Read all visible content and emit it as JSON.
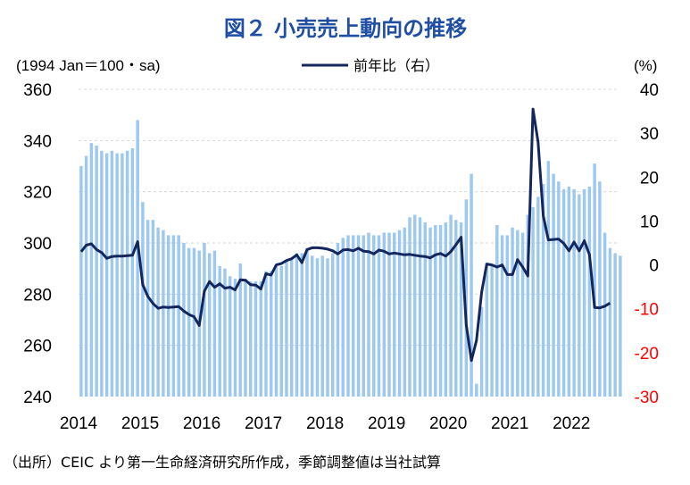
{
  "title": "図２ 小売売上動向の推移",
  "y_left_unit": "(1994 Jan＝100・sa)",
  "y_right_unit": "(%)",
  "source": "（出所）CEIC より第一生命経済研究所作成，季節調整値は当社試算",
  "colors": {
    "title": "#1f4ea3",
    "bar": "#9dc8f0",
    "line": "#13275e",
    "left_axis": "#000000",
    "right_axis_positive": "#000000",
    "right_axis_negative": "#ff0000",
    "grid": "#d9d9d9"
  },
  "chart_data": {
    "type": "bar",
    "xlim": [
      2014.0,
      2022.75
    ],
    "x_ticks": [
      "2014",
      "2015",
      "2016",
      "2017",
      "2018",
      "2019",
      "2020",
      "2021",
      "2022"
    ],
    "x_tick_values": [
      2014,
      2015,
      2016,
      2017,
      2018,
      2019,
      2020,
      2021,
      2022
    ],
    "y_left": {
      "range": [
        240,
        360
      ],
      "ticks": [
        240,
        260,
        280,
        300,
        320,
        340,
        360
      ]
    },
    "y_right": {
      "range": [
        -30,
        40
      ],
      "ticks": [
        -30,
        -20,
        -10,
        0,
        10,
        20,
        30,
        40
      ]
    },
    "grid": true,
    "series": [
      {
        "type": "bar",
        "axis": "left",
        "values": [
          330,
          334,
          339,
          338,
          336,
          335,
          336,
          335,
          335,
          336,
          337,
          348,
          316,
          309,
          309,
          306,
          305,
          303,
          303,
          303,
          300,
          298,
          298,
          297,
          300,
          296,
          297,
          291,
          290,
          287,
          286,
          292,
          286,
          285,
          285,
          285,
          289,
          289,
          291,
          291,
          293,
          294,
          296,
          296,
          298,
          295,
          294,
          295,
          294,
          296,
          300,
          302,
          303,
          303,
          303,
          303,
          304,
          303,
          303,
          304,
          304,
          304,
          305,
          306,
          310,
          311,
          310,
          308,
          306,
          307,
          307,
          308,
          311,
          309,
          308,
          317,
          327,
          245,
          275,
          292,
          291,
          307,
          303,
          303,
          306,
          305,
          304,
          311,
          314,
          318,
          323,
          332,
          327,
          324,
          321,
          322,
          321,
          319,
          321,
          322,
          331,
          324,
          304,
          298,
          296,
          295
        ]
      },
      {
        "type": "line",
        "axis": "right",
        "name": "前年比（右）",
        "values": [
          3,
          4.5,
          4.8,
          3.5,
          2.8,
          1.5,
          1.9,
          2.0,
          2.0,
          2.1,
          2.2,
          5.3,
          -4.5,
          -7.2,
          -8.8,
          -9.9,
          -9.6,
          -9.7,
          -9.6,
          -9.5,
          -10.5,
          -11.3,
          -11.8,
          -13.8,
          -6.0,
          -3.8,
          -5.1,
          -4.3,
          -5.3,
          -5.1,
          -5.7,
          -3.4,
          -3.5,
          -4.5,
          -4.6,
          -5.5,
          -2.0,
          -2.3,
          0.0,
          0.3,
          1.0,
          1.4,
          2.3,
          0.5,
          3.5,
          3.9,
          3.9,
          3.8,
          3.6,
          3.2,
          2.5,
          3.4,
          3.5,
          3.2,
          3.8,
          3.1,
          3.0,
          2.5,
          3.4,
          3.1,
          2.5,
          2.7,
          2.5,
          2.3,
          2.4,
          2.2,
          2.0,
          1.9,
          1.6,
          2.3,
          2.6,
          2.0,
          3.0,
          4.6,
          6.3,
          -13.6,
          -21.8,
          -17.2,
          -6.2,
          0.2,
          0.0,
          -0.5,
          0.0,
          -2.2,
          -2.2,
          1.2,
          -0.5,
          -2.5,
          35.5,
          28.0,
          11.2,
          5.7,
          5.8,
          5.9,
          4.9,
          3.2,
          5.2,
          3.2,
          5.5,
          2.3,
          -9.7,
          -9.8,
          -9.4,
          -8.7
        ]
      }
    ]
  }
}
